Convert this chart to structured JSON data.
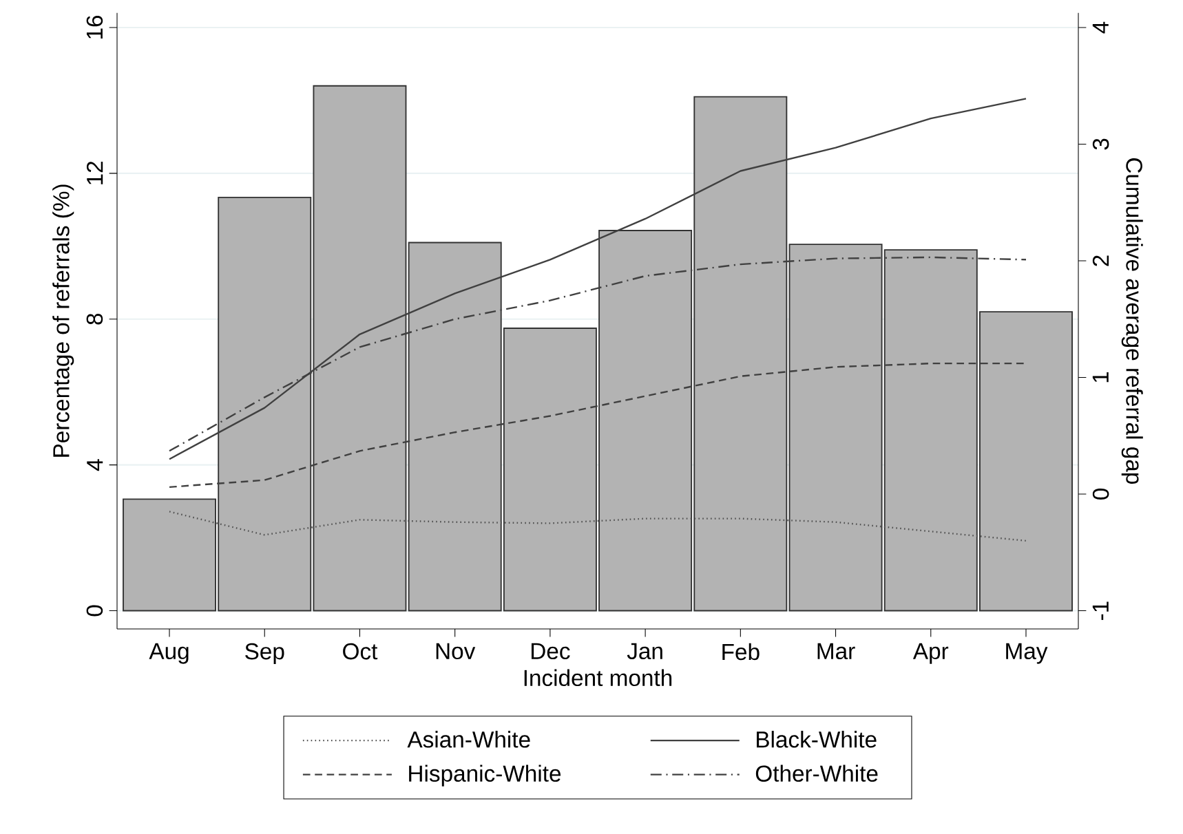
{
  "chart_data": {
    "type": "bar",
    "xlabel": "Incident month",
    "ylabel": "Percentage of referrals (%)",
    "y2label": "Cumulative average referral gap",
    "categories": [
      "Aug",
      "Sep",
      "Oct",
      "Nov",
      "Dec",
      "Jan",
      "Feb",
      "Mar",
      "Apr",
      "May"
    ],
    "series": [
      {
        "color": "#b3b3b3",
        "values": [
          3.06,
          11.34,
          14.4,
          10.1,
          7.75,
          10.43,
          14.1,
          10.05,
          9.9,
          8.2
        ]
      },
      {
        "type": "line",
        "name": "Asian-White",
        "axis": "y2",
        "color": "#505050",
        "line_style": "dotted",
        "values": [
          -0.15,
          -0.35,
          -0.22,
          -0.24,
          -0.25,
          -0.21,
          -0.21,
          -0.24,
          -0.32,
          -0.4
        ]
      },
      {
        "type": "line",
        "name": "Black-White",
        "axis": "y2",
        "color": "#404040",
        "line_style": "solid",
        "values": [
          0.3,
          0.74,
          1.37,
          1.72,
          2.01,
          2.36,
          2.77,
          2.97,
          3.22,
          3.39
        ]
      },
      {
        "type": "line",
        "name": "Hispanic-White",
        "axis": "y2",
        "color": "#404040",
        "line_style": "dashed",
        "values": [
          0.06,
          0.12,
          0.37,
          0.53,
          0.67,
          0.84,
          1.01,
          1.09,
          1.12,
          1.12
        ]
      },
      {
        "type": "line",
        "name": "Other-White",
        "axis": "y2",
        "color": "#404040",
        "line_style": "dashdotted",
        "values": [
          0.37,
          0.83,
          1.26,
          1.5,
          1.66,
          1.87,
          1.97,
          2.02,
          2.03,
          2.01
        ]
      }
    ],
    "ylim": [
      -0.5,
      16.4
    ],
    "yticks": [
      0,
      4,
      8,
      12,
      16
    ],
    "y2lim": [
      -1.156,
      4.125
    ],
    "y2ticks": [
      -1,
      0,
      1,
      2,
      3,
      4
    ],
    "grid": "y",
    "legend": "bottom",
    "marker": "none"
  }
}
